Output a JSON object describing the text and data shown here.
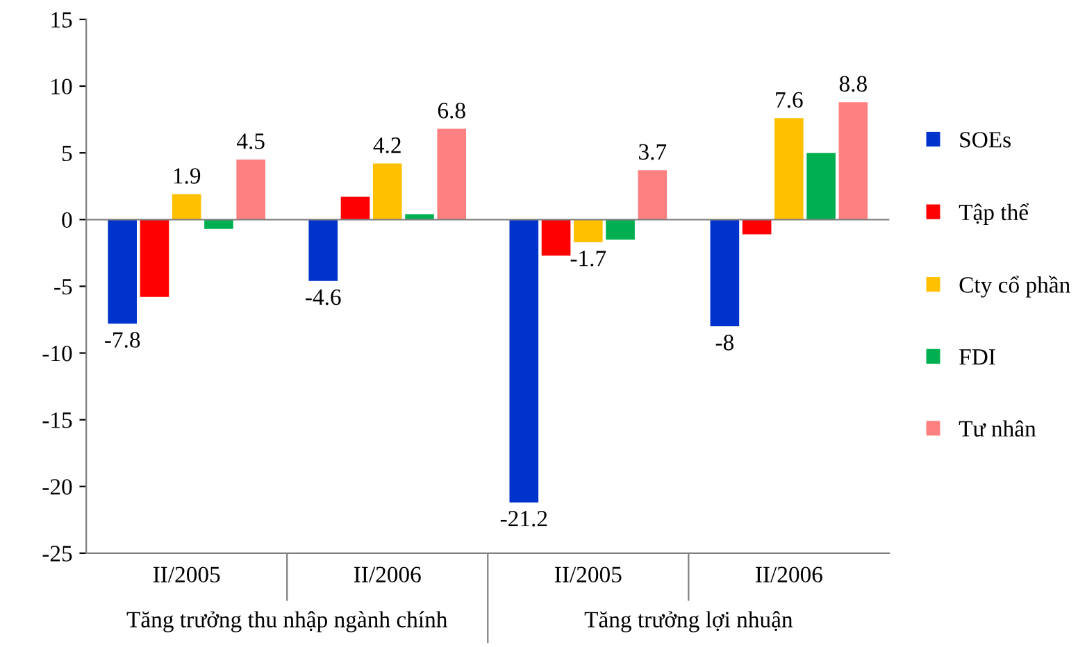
{
  "chart_data": {
    "type": "bar",
    "categories": [
      "II/2005",
      "II/2006",
      "II/2005",
      "II/2006"
    ],
    "annotations": [
      "Tăng trưởng thu nhập ngành chính",
      "Tăng trưởng lợi nhuận"
    ],
    "series": [
      {
        "name": "SOEs",
        "color": "#0033cc",
        "values": [
          -7.8,
          -4.6,
          -21.2,
          -8
        ],
        "value_labels": [
          "-7.8",
          "-4.6",
          "-21.2",
          "-8"
        ]
      },
      {
        "name": "Tập thể",
        "color": "#ff0000",
        "values": [
          -5.8,
          1.7,
          -2.7,
          -1.1
        ],
        "value_labels": [
          null,
          null,
          null,
          null
        ]
      },
      {
        "name": "Cty cổ phần",
        "color": "#ffc000",
        "values": [
          1.9,
          4.2,
          -1.7,
          7.6
        ],
        "value_labels": [
          "1.9",
          "4.2",
          "-1.7",
          "7.6"
        ]
      },
      {
        "name": "FDI",
        "color": "#00b050",
        "values": [
          -0.7,
          0.4,
          -1.5,
          5.0
        ],
        "value_labels": [
          null,
          null,
          null,
          null
        ]
      },
      {
        "name": "Tư nhân",
        "color": "#ff8080",
        "values": [
          4.5,
          6.8,
          3.7,
          8.8
        ],
        "value_labels": [
          "4.5",
          "6.8",
          "3.7",
          "8.8"
        ]
      }
    ],
    "ylim": [
      -25,
      15
    ],
    "yticks": [
      -25,
      -20,
      -15,
      -10,
      -5,
      0,
      5,
      10,
      15
    ],
    "ref_lines": [
      {
        "axis": "y",
        "value": 0,
        "color": "#808080"
      }
    ],
    "grid": false,
    "legend": "right"
  }
}
